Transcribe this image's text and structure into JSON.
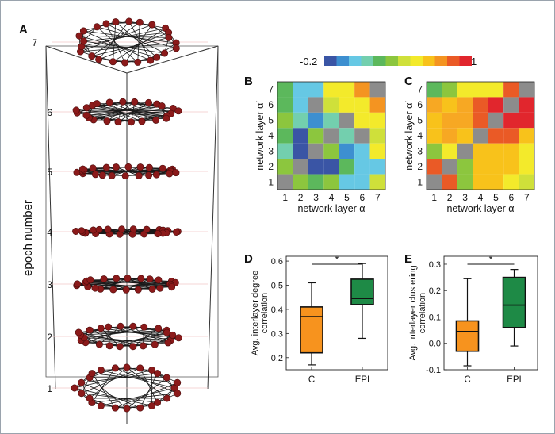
{
  "panels": {
    "A": "A",
    "B": "B",
    "C": "C",
    "D": "D",
    "E": "E"
  },
  "panel_a": {
    "ylabel": "epoch number",
    "epochs": [
      "1",
      "2",
      "3",
      "4",
      "5",
      "6",
      "7"
    ]
  },
  "colorbar": {
    "min_label": "-0.2",
    "max_label": "1",
    "colors": [
      "#3a55a5",
      "#3d8fd0",
      "#66c8e4",
      "#73cfae",
      "#5cb85c",
      "#8cc63e",
      "#cfe03a",
      "#f3ea2b",
      "#f8c21b",
      "#f49421",
      "#ea5a26",
      "#e1262d"
    ]
  },
  "heatmap_colors": {
    "g": "#8c8c8c",
    "db": "#3a55a5",
    "b": "#3d8fd0",
    "lb": "#66c8e4",
    "t": "#73cfae",
    "gr": "#5cb85c",
    "lg": "#8cc63e",
    "yg": "#cfe03a",
    "y": "#f3ea2b",
    "ly": "#f8c21b",
    "o": "#f7a823",
    "do": "#f49421",
    "r": "#ea5a26",
    "dr": "#e1262d"
  },
  "heatmap_b": {
    "xlabel": "network layer α",
    "ylabel": "network layer α′",
    "ticks": [
      "1",
      "2",
      "3",
      "4",
      "5",
      "6",
      "7"
    ],
    "grid": [
      [
        "gr",
        "lb",
        "lb",
        "y",
        "y",
        "do",
        "g"
      ],
      [
        "gr",
        "lb",
        "g",
        "yg",
        "y",
        "y",
        "do"
      ],
      [
        "lg",
        "t",
        "b",
        "t",
        "g",
        "y",
        "y"
      ],
      [
        "gr",
        "db",
        "lg",
        "g",
        "t",
        "g",
        "yg"
      ],
      [
        "t",
        "db",
        "g",
        "lg",
        "b",
        "lb",
        "y"
      ],
      [
        "lg",
        "g",
        "db",
        "db",
        "gr",
        "lb",
        "lb"
      ],
      [
        "g",
        "lg",
        "gr",
        "lg",
        "lb",
        "lb",
        "yg"
      ]
    ]
  },
  "heatmap_c": {
    "xlabel": "network layer α",
    "ylabel": "network layer α′",
    "ticks": [
      "1",
      "2",
      "3",
      "4",
      "5",
      "6",
      "7"
    ],
    "grid": [
      [
        "gr",
        "lg",
        "y",
        "y",
        "y",
        "r",
        "g"
      ],
      [
        "o",
        "ly",
        "o",
        "r",
        "dr",
        "g",
        "dr"
      ],
      [
        "ly",
        "o",
        "o",
        "r",
        "g",
        "dr",
        "dr"
      ],
      [
        "ly",
        "o",
        "ly",
        "g",
        "r",
        "r",
        "ly"
      ],
      [
        "lg",
        "y",
        "g",
        "ly",
        "ly",
        "ly",
        "y"
      ],
      [
        "r",
        "g",
        "lg",
        "ly",
        "ly",
        "ly",
        "y"
      ],
      [
        "g",
        "r",
        "lg",
        "ly",
        "ly",
        "y",
        "yg"
      ]
    ]
  },
  "chart_data": [
    {
      "type": "box",
      "panel": "D",
      "ylabel": "Avg. interlayer degree correlation",
      "categories": [
        "C",
        "EPI"
      ],
      "ylim": [
        0.15,
        0.62
      ],
      "yticks": [
        "0.2",
        "0.3",
        "0.4",
        "0.5",
        "0.6"
      ],
      "significance": "*",
      "boxes": [
        {
          "name": "C",
          "min": 0.17,
          "q1": 0.22,
          "median": 0.37,
          "q3": 0.41,
          "max": 0.51,
          "color": "#f7931e"
        },
        {
          "name": "EPI",
          "min": 0.28,
          "q1": 0.42,
          "median": 0.445,
          "q3": 0.525,
          "max": 0.59,
          "color": "#1e8a46"
        }
      ]
    },
    {
      "type": "box",
      "panel": "E",
      "ylabel": "Avg. interlayer clustering correlation",
      "categories": [
        "C",
        "EPI"
      ],
      "ylim": [
        -0.1,
        0.33
      ],
      "yticks": [
        "-0.1",
        "0.0",
        "0.1",
        "0.2",
        "0.3"
      ],
      "significance": "*",
      "boxes": [
        {
          "name": "C",
          "min": -0.085,
          "q1": -0.03,
          "median": 0.045,
          "q3": 0.085,
          "max": 0.245,
          "color": "#f7931e"
        },
        {
          "name": "EPI",
          "min": -0.01,
          "q1": 0.06,
          "median": 0.145,
          "q3": 0.25,
          "max": 0.28,
          "color": "#1e8a46"
        }
      ]
    }
  ]
}
